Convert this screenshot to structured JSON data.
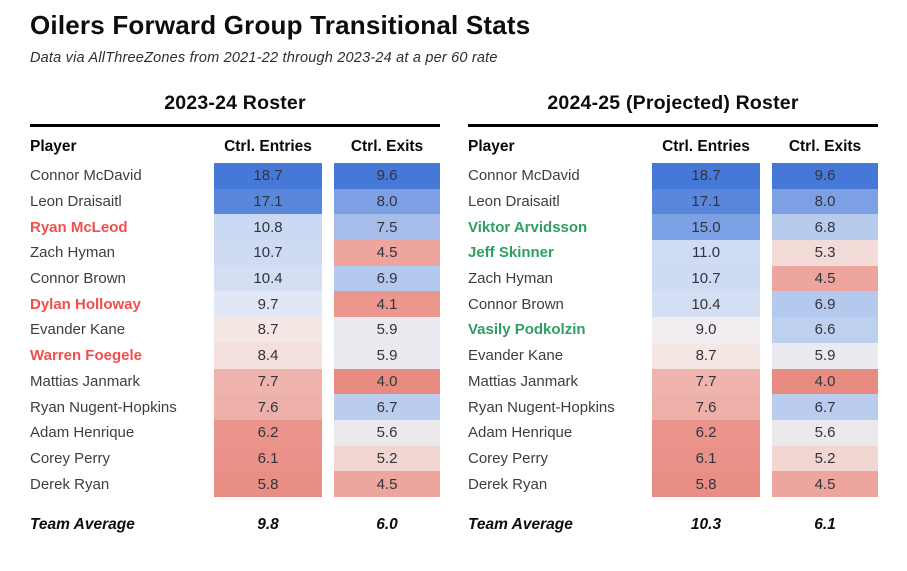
{
  "page": {
    "title": "Oilers Forward Group Transitional Stats",
    "subtitle": "Data via AllThreeZones from 2021-22 through 2023-24 at a per 60 rate"
  },
  "colors": {
    "departure_player": "#f04f4d",
    "addition_player": "#2f9e63",
    "heat_blue_max": "#4678d8",
    "heat_red_max": "#e88c82",
    "rule": "#000000"
  },
  "tables": [
    {
      "title": "2023-24 Roster",
      "columns": [
        "Player",
        "Ctrl. Entries",
        "Ctrl. Exits"
      ],
      "rows": [
        {
          "player": "Connor McDavid",
          "status": "stay",
          "entries": "18.7",
          "entries_color": "#4678d8",
          "exits": "9.6",
          "exits_color": "#4678d8"
        },
        {
          "player": "Leon Draisaitl",
          "status": "stay",
          "entries": "17.1",
          "entries_color": "#5987dc",
          "exits": "8.0",
          "exits_color": "#7da0e4"
        },
        {
          "player": "Ryan McLeod",
          "status": "out",
          "entries": "10.8",
          "entries_color": "#ccd9f2",
          "exits": "7.5",
          "exits_color": "#a6bdea"
        },
        {
          "player": "Zach Hyman",
          "status": "stay",
          "entries": "10.7",
          "entries_color": "#cedbf2",
          "exits": "4.5",
          "exits_color": "#eda59d"
        },
        {
          "player": "Connor Brown",
          "status": "stay",
          "entries": "10.4",
          "entries_color": "#d5dff3",
          "exits": "6.9",
          "exits_color": "#b4c9ee"
        },
        {
          "player": "Dylan Holloway",
          "status": "out",
          "entries": "9.7",
          "entries_color": "#e2e7f5",
          "exits": "4.1",
          "exits_color": "#eb978e"
        },
        {
          "player": "Evander Kane",
          "status": "stay",
          "entries": "8.7",
          "entries_color": "#f4e7e4",
          "exits": "5.9",
          "exits_color": "#e9ebf1"
        },
        {
          "player": "Warren Foegele",
          "status": "out",
          "entries": "8.4",
          "entries_color": "#f3dfdb",
          "exits": "5.9",
          "exits_color": "#e9ebf1"
        },
        {
          "player": "Mattias Janmark",
          "status": "stay",
          "entries": "7.7",
          "entries_color": "#efb4ad",
          "exits": "4.0",
          "exits_color": "#e88c82"
        },
        {
          "player": "Ryan Nugent-Hopkins",
          "status": "stay",
          "entries": "7.6",
          "entries_color": "#eeb1aa",
          "exits": "6.7",
          "exits_color": "#bacdee"
        },
        {
          "player": "Adam Henrique",
          "status": "stay",
          "entries": "6.2",
          "entries_color": "#ea948c",
          "exits": "5.6",
          "exits_color": "#ece9ec"
        },
        {
          "player": "Corey Perry",
          "status": "stay",
          "entries": "6.1",
          "entries_color": "#ea9289",
          "exits": "5.2",
          "exits_color": "#f2d6d2"
        },
        {
          "player": "Derek Ryan",
          "status": "stay",
          "entries": "5.8",
          "entries_color": "#e98e84",
          "exits": "4.5",
          "exits_color": "#eda59d"
        }
      ],
      "footer": {
        "label": "Team Average",
        "entries": "9.8",
        "exits": "6.0"
      }
    },
    {
      "title": "2024-25 (Projected) Roster",
      "columns": [
        "Player",
        "Ctrl. Entries",
        "Ctrl. Exits"
      ],
      "rows": [
        {
          "player": "Connor McDavid",
          "status": "stay",
          "entries": "18.7",
          "entries_color": "#4678d8",
          "exits": "9.6",
          "exits_color": "#4678d8"
        },
        {
          "player": "Leon Draisaitl",
          "status": "stay",
          "entries": "17.1",
          "entries_color": "#5987dc",
          "exits": "8.0",
          "exits_color": "#7da0e4"
        },
        {
          "player": "Viktor Arvidsson",
          "status": "in",
          "entries": "15.0",
          "entries_color": "#7ba0e4",
          "exits": "6.8",
          "exits_color": "#b7cbed"
        },
        {
          "player": "Jeff Skinner",
          "status": "in",
          "entries": "11.0",
          "entries_color": "#cfdcf3",
          "exits": "5.3",
          "exits_color": "#f3dbd7"
        },
        {
          "player": "Zach Hyman",
          "status": "stay",
          "entries": "10.7",
          "entries_color": "#cedbf2",
          "exits": "4.5",
          "exits_color": "#eda59d"
        },
        {
          "player": "Connor Brown",
          "status": "stay",
          "entries": "10.4",
          "entries_color": "#d5dff3",
          "exits": "6.9",
          "exits_color": "#b4c9ee"
        },
        {
          "player": "Vasily Podkolzin",
          "status": "in",
          "entries": "9.0",
          "entries_color": "#f1edf0",
          "exits": "6.6",
          "exits_color": "#bdd0ef"
        },
        {
          "player": "Evander Kane",
          "status": "stay",
          "entries": "8.7",
          "entries_color": "#f4e7e4",
          "exits": "5.9",
          "exits_color": "#e9ebf1"
        },
        {
          "player": "Mattias Janmark",
          "status": "stay",
          "entries": "7.7",
          "entries_color": "#efb4ad",
          "exits": "4.0",
          "exits_color": "#e88c82"
        },
        {
          "player": "Ryan Nugent-Hopkins",
          "status": "stay",
          "entries": "7.6",
          "entries_color": "#eeb1aa",
          "exits": "6.7",
          "exits_color": "#bacdee"
        },
        {
          "player": "Adam Henrique",
          "status": "stay",
          "entries": "6.2",
          "entries_color": "#ea948c",
          "exits": "5.6",
          "exits_color": "#ece9ec"
        },
        {
          "player": "Corey Perry",
          "status": "stay",
          "entries": "6.1",
          "entries_color": "#ea9289",
          "exits": "5.2",
          "exits_color": "#f2d6d2"
        },
        {
          "player": "Derek Ryan",
          "status": "stay",
          "entries": "5.8",
          "entries_color": "#e98e84",
          "exits": "4.5",
          "exits_color": "#eda59d"
        }
      ],
      "footer": {
        "label": "Team Average",
        "entries": "10.3",
        "exits": "6.1"
      }
    }
  ],
  "chart_data": [
    {
      "type": "heatmap",
      "title": "2023-24 Roster",
      "categories": [
        "Connor McDavid",
        "Leon Draisaitl",
        "Ryan McLeod",
        "Zach Hyman",
        "Connor Brown",
        "Dylan Holloway",
        "Evander Kane",
        "Warren Foegele",
        "Mattias Janmark",
        "Ryan Nugent-Hopkins",
        "Adam Henrique",
        "Corey Perry",
        "Derek Ryan"
      ],
      "series": [
        {
          "name": "Ctrl. Entries",
          "values": [
            18.7,
            17.1,
            10.8,
            10.7,
            10.4,
            9.7,
            8.7,
            8.4,
            7.7,
            7.6,
            6.2,
            6.1,
            5.8
          ]
        },
        {
          "name": "Ctrl. Exits",
          "values": [
            9.6,
            8.0,
            7.5,
            4.5,
            6.9,
            4.1,
            5.9,
            5.9,
            4.0,
            6.7,
            5.6,
            5.2,
            4.5
          ]
        }
      ],
      "team_average": {
        "Ctrl. Entries": 9.8,
        "Ctrl. Exits": 6.0
      },
      "highlighted_departing_players": [
        "Ryan McLeod",
        "Dylan Holloway",
        "Warren Foegele"
      ],
      "color_scale": "diverging red (low) to blue (high)"
    },
    {
      "type": "heatmap",
      "title": "2024-25 (Projected) Roster",
      "categories": [
        "Connor McDavid",
        "Leon Draisaitl",
        "Viktor Arvidsson",
        "Jeff Skinner",
        "Zach Hyman",
        "Connor Brown",
        "Vasily Podkolzin",
        "Evander Kane",
        "Mattias Janmark",
        "Ryan Nugent-Hopkins",
        "Adam Henrique",
        "Corey Perry",
        "Derek Ryan"
      ],
      "series": [
        {
          "name": "Ctrl. Entries",
          "values": [
            18.7,
            17.1,
            15.0,
            11.0,
            10.7,
            10.4,
            9.0,
            8.7,
            7.7,
            7.6,
            6.2,
            6.1,
            5.8
          ]
        },
        {
          "name": "Ctrl. Exits",
          "values": [
            9.6,
            8.0,
            6.8,
            5.3,
            4.5,
            6.9,
            6.6,
            5.9,
            4.0,
            6.7,
            5.6,
            5.2,
            4.5
          ]
        }
      ],
      "team_average": {
        "Ctrl. Entries": 10.3,
        "Ctrl. Exits": 6.1
      },
      "highlighted_new_players": [
        "Viktor Arvidsson",
        "Jeff Skinner",
        "Vasily Podkolzin"
      ],
      "color_scale": "diverging red (low) to blue (high)"
    }
  ]
}
